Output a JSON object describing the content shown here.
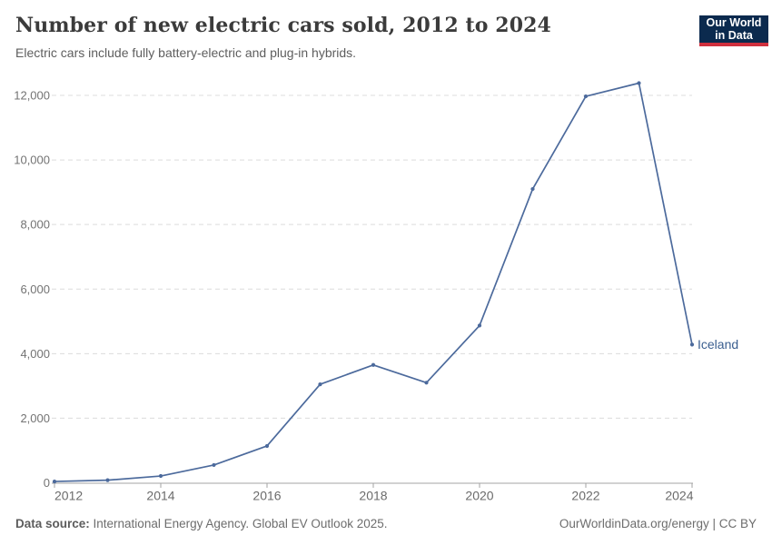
{
  "header": {
    "title": "Number of new electric cars sold, 2012 to 2024",
    "subtitle": "Electric cars include fully battery-electric and plug-in hybrids.",
    "logo": {
      "line1": "Our World",
      "line2": "in Data",
      "bg_color": "#0b2a4e",
      "accent_color": "#cf303e"
    }
  },
  "footer": {
    "source_label": "Data source:",
    "source_text": " International Energy Agency. Global EV Outlook 2025.",
    "credit": "OurWorldinData.org/energy | CC BY"
  },
  "chart_data": {
    "type": "line",
    "title": "Number of new electric cars sold, 2012 to 2024",
    "x": [
      2012,
      2013,
      2014,
      2015,
      2016,
      2017,
      2018,
      2019,
      2020,
      2021,
      2022,
      2023,
      2024
    ],
    "series": [
      {
        "name": "Iceland",
        "values": [
          40,
          80,
          210,
          550,
          1140,
          3050,
          3650,
          3100,
          4870,
          9100,
          11970,
          12380,
          4280
        ],
        "color": "#4c6a9c",
        "label_color": "#3a5e8f"
      }
    ],
    "xticks": [
      2012,
      2014,
      2016,
      2018,
      2020,
      2022,
      2024
    ],
    "yticks": [
      0,
      2000,
      4000,
      6000,
      8000,
      10000,
      12000
    ],
    "xlim": [
      2012,
      2024
    ],
    "ylim": [
      0,
      12600
    ],
    "xlabel": "",
    "ylabel": "",
    "grid": "horizontal-dashed",
    "legend_position": "end-of-line-label",
    "colors": {
      "gridline": "#dcdcdc",
      "axis": "#a3a3a3",
      "ytick_label": "#737373",
      "xtick_label": "#6b6b6b"
    }
  }
}
